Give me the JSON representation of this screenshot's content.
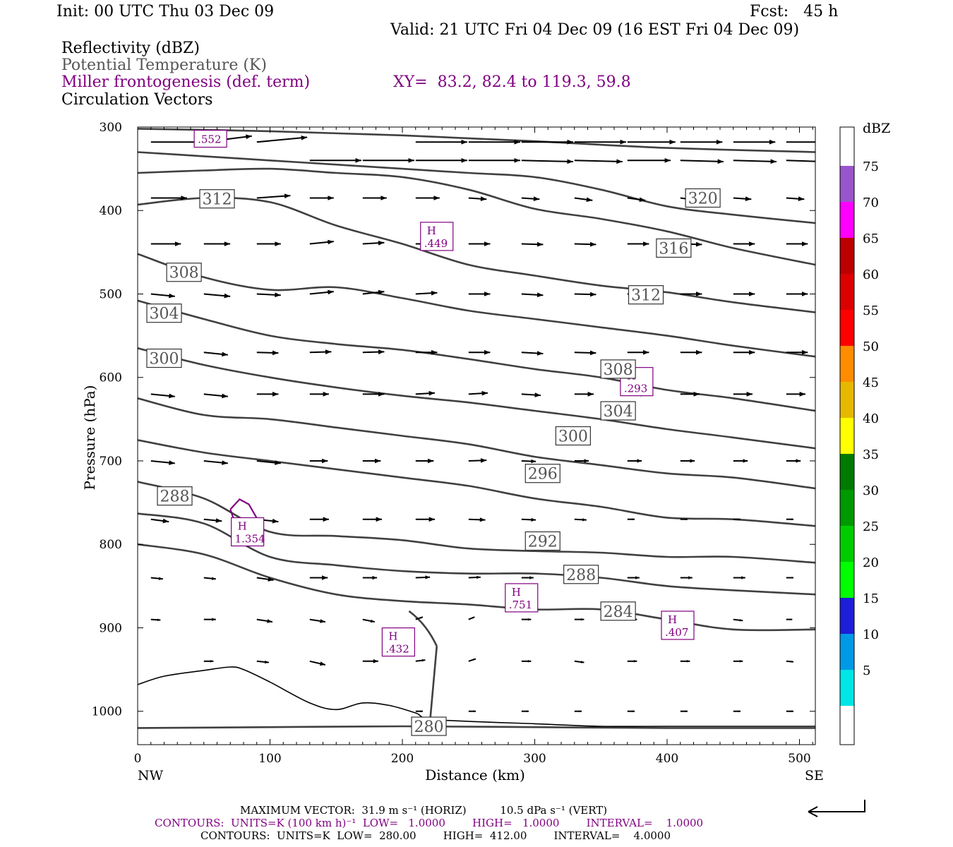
{
  "header": {
    "init": "Init: 00 UTC Thu 03 Dec 09",
    "fcst": "Fcst:   45 h",
    "valid": "Valid: 21 UTC Fri 04 Dec 09 (16 EST Fri 04 Dec 09)"
  },
  "fields": {
    "reflectivity": "Reflectivity (dBZ)",
    "theta": "Potential Temperature (K)",
    "miller": "Miller frontogenesis (def. term)",
    "xy": "XY=  83.2, 82.4 to 119.3, 59.8",
    "circulation": "Circulation Vectors"
  },
  "colors": {
    "theta_line": "#404040",
    "frontogenesis": "#800080",
    "vector": "#000000",
    "terrain": "#000000"
  },
  "chart_data": {
    "type": "cross-section",
    "ylabel": "Pressure (hPa)",
    "xlabel": "Distance (km)",
    "x_ticks": [
      "0",
      "100",
      "200",
      "300",
      "400",
      "500"
    ],
    "x_tick_values": [
      0,
      100,
      200,
      300,
      400,
      500
    ],
    "y_ticks": [
      "300",
      "400",
      "500",
      "600",
      "700",
      "800",
      "900",
      "1000"
    ],
    "y_tick_values": [
      300,
      400,
      500,
      600,
      700,
      800,
      900,
      1000
    ],
    "xlim": [
      0,
      512
    ],
    "ylim": [
      1040,
      300
    ],
    "end_labels": {
      "left": "NW",
      "right": "SE"
    },
    "theta_contours": [
      {
        "level": 280,
        "label": "280",
        "points": [
          [
            0,
            1020
          ],
          [
            100,
            1019
          ],
          [
            200,
            1018
          ],
          [
            300,
            1019
          ],
          [
            400,
            1020
          ],
          [
            512,
            1020
          ]
        ]
      },
      {
        "level": 284,
        "label": "284",
        "points": [
          [
            0,
            800
          ],
          [
            50,
            812
          ],
          [
            100,
            840
          ],
          [
            150,
            860
          ],
          [
            200,
            868
          ],
          [
            250,
            872
          ],
          [
            300,
            878
          ],
          [
            350,
            878
          ],
          [
            400,
            890
          ],
          [
            450,
            902
          ],
          [
            512,
            902
          ]
        ]
      },
      {
        "level": 288,
        "label": "288",
        "points": [
          [
            0,
            763
          ],
          [
            50,
            775
          ],
          [
            100,
            815
          ],
          [
            150,
            825
          ],
          [
            200,
            832
          ],
          [
            250,
            835
          ],
          [
            300,
            835
          ],
          [
            350,
            840
          ],
          [
            400,
            850
          ],
          [
            450,
            855
          ],
          [
            512,
            860
          ]
        ]
      },
      {
        "level": 292,
        "label": "292",
        "points": [
          [
            0,
            725
          ],
          [
            50,
            745
          ],
          [
            100,
            785
          ],
          [
            150,
            790
          ],
          [
            200,
            795
          ],
          [
            250,
            805
          ],
          [
            300,
            808
          ],
          [
            350,
            810
          ],
          [
            400,
            815
          ],
          [
            450,
            815
          ],
          [
            512,
            822
          ]
        ]
      },
      {
        "level": 296,
        "label": "296",
        "points": [
          [
            0,
            675
          ],
          [
            50,
            690
          ],
          [
            100,
            700
          ],
          [
            150,
            710
          ],
          [
            200,
            720
          ],
          [
            250,
            730
          ],
          [
            300,
            745
          ],
          [
            350,
            755
          ],
          [
            400,
            768
          ],
          [
            450,
            770
          ],
          [
            512,
            778
          ]
        ]
      },
      {
        "level": 300,
        "label": "300",
        "points": [
          [
            0,
            625
          ],
          [
            50,
            645
          ],
          [
            100,
            650
          ],
          [
            150,
            660
          ],
          [
            200,
            670
          ],
          [
            250,
            680
          ],
          [
            300,
            695
          ],
          [
            350,
            705
          ],
          [
            400,
            715
          ],
          [
            450,
            720
          ],
          [
            512,
            733
          ]
        ]
      },
      {
        "level": 304,
        "label": "304",
        "points": [
          [
            0,
            565
          ],
          [
            50,
            585
          ],
          [
            100,
            600
          ],
          [
            150,
            612
          ],
          [
            200,
            622
          ],
          [
            250,
            630
          ],
          [
            300,
            640
          ],
          [
            350,
            650
          ],
          [
            400,
            662
          ],
          [
            450,
            672
          ],
          [
            512,
            685
          ]
        ]
      },
      {
        "level": 308,
        "label": "308",
        "points": [
          [
            0,
            508
          ],
          [
            50,
            530
          ],
          [
            100,
            550
          ],
          [
            150,
            560
          ],
          [
            200,
            567
          ],
          [
            250,
            578
          ],
          [
            300,
            590
          ],
          [
            350,
            600
          ],
          [
            400,
            615
          ],
          [
            450,
            625
          ],
          [
            512,
            640
          ]
        ]
      },
      {
        "level": 312,
        "label": "312",
        "points": [
          [
            0,
            452
          ],
          [
            50,
            480
          ],
          [
            100,
            495
          ],
          [
            150,
            492
          ],
          [
            200,
            505
          ],
          [
            250,
            520
          ],
          [
            300,
            530
          ],
          [
            350,
            540
          ],
          [
            400,
            550
          ],
          [
            450,
            562
          ],
          [
            512,
            575
          ]
        ]
      },
      {
        "level": 316,
        "label": "316",
        "points": [
          [
            0,
            393
          ],
          [
            50,
            385
          ],
          [
            100,
            390
          ],
          [
            150,
            418
          ],
          [
            200,
            440
          ],
          [
            250,
            465
          ],
          [
            300,
            478
          ],
          [
            350,
            490
          ],
          [
            400,
            498
          ],
          [
            450,
            510
          ],
          [
            512,
            522
          ]
        ]
      },
      {
        "level": 320,
        "label": "320",
        "points": [
          [
            0,
            355
          ],
          [
            50,
            352
          ],
          [
            100,
            350
          ],
          [
            150,
            355
          ],
          [
            200,
            360
          ],
          [
            250,
            375
          ],
          [
            300,
            398
          ],
          [
            350,
            410
          ],
          [
            400,
            425
          ],
          [
            450,
            445
          ],
          [
            512,
            465
          ]
        ]
      },
      {
        "level": 324,
        "label": "",
        "points": [
          [
            0,
            330
          ],
          [
            50,
            335
          ],
          [
            100,
            340
          ],
          [
            150,
            345
          ],
          [
            200,
            350
          ],
          [
            250,
            355
          ],
          [
            300,
            360
          ],
          [
            350,
            375
          ],
          [
            400,
            395
          ],
          [
            450,
            405
          ],
          [
            512,
            415
          ]
        ]
      },
      {
        "level": 328,
        "label": "",
        "points": [
          [
            0,
            302
          ],
          [
            100,
            305
          ],
          [
            200,
            310
          ],
          [
            300,
            317
          ],
          [
            400,
            325
          ],
          [
            512,
            330
          ]
        ]
      }
    ],
    "frontogenesis_maxima": [
      {
        "label": "H",
        "value": ".552",
        "x": 55,
        "p": 314
      },
      {
        "label": "H",
        "value": ".449",
        "x": 226,
        "p": 431
      },
      {
        "label": "H",
        "value": ".293",
        "x": 377,
        "p": 605
      },
      {
        "label": "H",
        "value": "1.354",
        "x": 83,
        "p": 785
      },
      {
        "label": "H",
        "value": ".751",
        "x": 290,
        "p": 864
      },
      {
        "label": "H",
        "value": ".407",
        "x": 408,
        "p": 897
      },
      {
        "label": "H",
        "value": ".432",
        "x": 197,
        "p": 917
      }
    ],
    "frontogenesis_contours": [
      {
        "points": [
          [
            70,
            758
          ],
          [
            77,
            746
          ],
          [
            84,
            752
          ],
          [
            92,
            774
          ]
        ]
      },
      {
        "points": [
          [
            70,
            758
          ],
          [
            73,
            772
          ],
          [
            74,
            782
          ]
        ]
      }
    ],
    "terrain_line": [
      [
        0,
        968
      ],
      [
        20,
        958
      ],
      [
        50,
        951
      ],
      [
        70,
        947
      ],
      [
        80,
        950
      ],
      [
        100,
        965
      ],
      [
        130,
        990
      ],
      [
        150,
        998
      ],
      [
        170,
        990
      ],
      [
        190,
        993
      ],
      [
        210,
        1002
      ],
      [
        225,
        1010
      ],
      [
        300,
        1015
      ],
      [
        350,
        1018
      ],
      [
        400,
        1018
      ],
      [
        512,
        1018
      ]
    ],
    "terrain_vertical": [
      [
        226,
        922
      ],
      [
        221,
        1010
      ]
    ],
    "vector_columns": [
      10,
      50,
      90,
      130,
      170,
      210,
      250,
      290,
      330,
      370,
      410,
      450,
      490
    ],
    "vector_rows": [
      {
        "p": 318,
        "u": [
          4.5,
          4.0,
          4.2,
          null,
          0,
          4.3,
          4.3,
          4.3,
          4.3,
          4.0,
          3.5,
          3.5,
          3.0
        ],
        "w": [
          0,
          0.5,
          0.4,
          null,
          0,
          0,
          0,
          0,
          0,
          0,
          0,
          0,
          0
        ]
      },
      {
        "p": 340,
        "u": [
          null,
          null,
          null,
          4.3,
          4.3,
          4.3,
          4.3,
          4.3,
          4.0,
          3.6,
          3.6,
          3.6,
          3.0
        ],
        "w": [
          null,
          null,
          null,
          0,
          0,
          0,
          0,
          -0.1,
          -0.1,
          0,
          -0.1,
          -0.1,
          -0.1
        ]
      },
      {
        "p": 385,
        "u": [
          3.0,
          null,
          2.8,
          2.0,
          2.0,
          2.0,
          1.5,
          1.5,
          1.5,
          1.5,
          1.5,
          1.5,
          1.5
        ],
        "w": [
          0,
          null,
          0.2,
          0,
          0,
          0,
          -0.1,
          -0.1,
          -0.2,
          -0.2,
          -0.2,
          -0.1,
          -0.1
        ]
      },
      {
        "p": 440,
        "u": [
          2.5,
          2.2,
          2.0,
          2.0,
          1.8,
          1.8,
          1.8,
          1.8,
          1.8,
          1.8,
          1.8,
          1.8,
          1.8
        ],
        "w": [
          0,
          0,
          0,
          0.2,
          0.1,
          0,
          0,
          -0.05,
          -0.05,
          0,
          -0.05,
          0,
          0
        ]
      },
      {
        "p": 500,
        "u": [
          2.0,
          2.2,
          2.0,
          2.0,
          1.8,
          1.8,
          1.8,
          1.8,
          1.8,
          1.8,
          1.8,
          1.8,
          1.8
        ],
        "w": [
          -0.2,
          -0.2,
          -0.1,
          0.2,
          0.2,
          0.1,
          0,
          -0.1,
          -0.05,
          0,
          0,
          0,
          0
        ]
      },
      {
        "p": 570,
        "u": [
          2.0,
          2.0,
          1.8,
          1.8,
          1.8,
          1.8,
          1.8,
          1.8,
          1.8,
          1.8,
          1.8,
          1.8,
          1.8
        ],
        "w": [
          -0.2,
          -0.2,
          -0.05,
          0.05,
          0.05,
          0,
          0,
          -0.1,
          -0.05,
          0,
          0,
          0,
          0
        ]
      },
      {
        "p": 620,
        "u": [
          2.0,
          2.0,
          1.8,
          1.6,
          1.8,
          1.6,
          1.6,
          1.6,
          1.6,
          1.6,
          1.6,
          1.6,
          1.6
        ],
        "w": [
          -0.2,
          -0.2,
          0,
          0,
          0,
          0.1,
          0.1,
          -0.1,
          0,
          0,
          0,
          0,
          0
        ]
      },
      {
        "p": 700,
        "u": [
          2.0,
          2.0,
          2.0,
          1.5,
          1.5,
          1.5,
          1.5,
          1.2,
          1.2,
          1.2,
          1.2,
          1.2,
          1.2
        ],
        "w": [
          -0.2,
          -0.2,
          -0.2,
          0,
          0,
          0,
          0.05,
          -0.05,
          0,
          0,
          0,
          0,
          0
        ]
      },
      {
        "p": 770,
        "u": [
          1.5,
          1.5,
          1.8,
          1.6,
          1.6,
          1.6,
          1.4,
          1.2,
          1.0,
          0.6,
          0.6,
          0.6,
          0.6
        ],
        "w": [
          -0.2,
          -0.15,
          -0.2,
          0,
          0,
          0,
          -0.05,
          -0.05,
          -0.05,
          0,
          0,
          0,
          0
        ]
      },
      {
        "p": 840,
        "u": [
          1.0,
          1.0,
          1.4,
          1.5,
          1.2,
          1.2,
          1.0,
          1.0,
          1.0,
          1.0,
          1.0,
          1.0,
          0.6
        ],
        "w": [
          -0.1,
          -0.1,
          -0.2,
          0,
          0,
          0.05,
          0.05,
          0,
          0,
          0,
          0,
          0,
          0
        ]
      },
      {
        "p": 890,
        "u": [
          0.8,
          1.0,
          1.3,
          1.3,
          1.0,
          0.6,
          0.5,
          0.8,
          0.8,
          0.8,
          0.8,
          0.8,
          0.5
        ],
        "w": [
          -0.05,
          0,
          -0.2,
          -0.2,
          -0.2,
          0.2,
          0.2,
          0,
          0,
          0,
          0,
          -0.1,
          0
        ]
      },
      {
        "p": 940,
        "u": [
          null,
          0.8,
          1.0,
          1.3,
          1.3,
          0.8,
          0.6,
          0.8,
          0.8,
          0.8,
          0.8,
          0.8,
          0.6
        ],
        "w": [
          null,
          0,
          -0.1,
          -0.3,
          0,
          0.1,
          0.2,
          0,
          -0.1,
          0,
          0,
          0,
          -0.05
        ]
      },
      {
        "p": 1000,
        "u": [
          null,
          null,
          null,
          null,
          null,
          0.6,
          0.6,
          0.6,
          0.6,
          0.6,
          0.6,
          0.6,
          0.6
        ],
        "w": [
          null,
          null,
          null,
          null,
          null,
          0,
          0,
          0,
          0,
          0,
          0,
          0,
          0
        ]
      }
    ],
    "colorbar": {
      "title": "dBZ",
      "labels": [
        "5",
        "10",
        "15",
        "20",
        "25",
        "30",
        "35",
        "40",
        "45",
        "50",
        "55",
        "60",
        "65",
        "70",
        "75"
      ],
      "colors": [
        "#ffffff",
        "#00e5e5",
        "#0099e6",
        "#1e1ed8",
        "#00ff00",
        "#00cc00",
        "#009900",
        "#007a00",
        "#ffff00",
        "#e6b800",
        "#ff8c00",
        "#ff0000",
        "#dd0000",
        "#bb0000",
        "#ff00ff",
        "#9955cc",
        "#ffffff"
      ]
    }
  },
  "footer": {
    "max_vector": "MAXIMUM VECTOR:  31.9 m s⁻¹ (HORIZ)          10.5 dPa s⁻¹ (VERT)",
    "contours_fg": "CONTOURS:  UNITS=K (100 km h)⁻¹  LOW=   1.0000        HIGH=   1.0000        INTERVAL=    1.0000",
    "contours_theta": "CONTOURS:  UNITS=K  LOW=  280.00        HIGH=  412.00        INTERVAL=    4.0000"
  }
}
